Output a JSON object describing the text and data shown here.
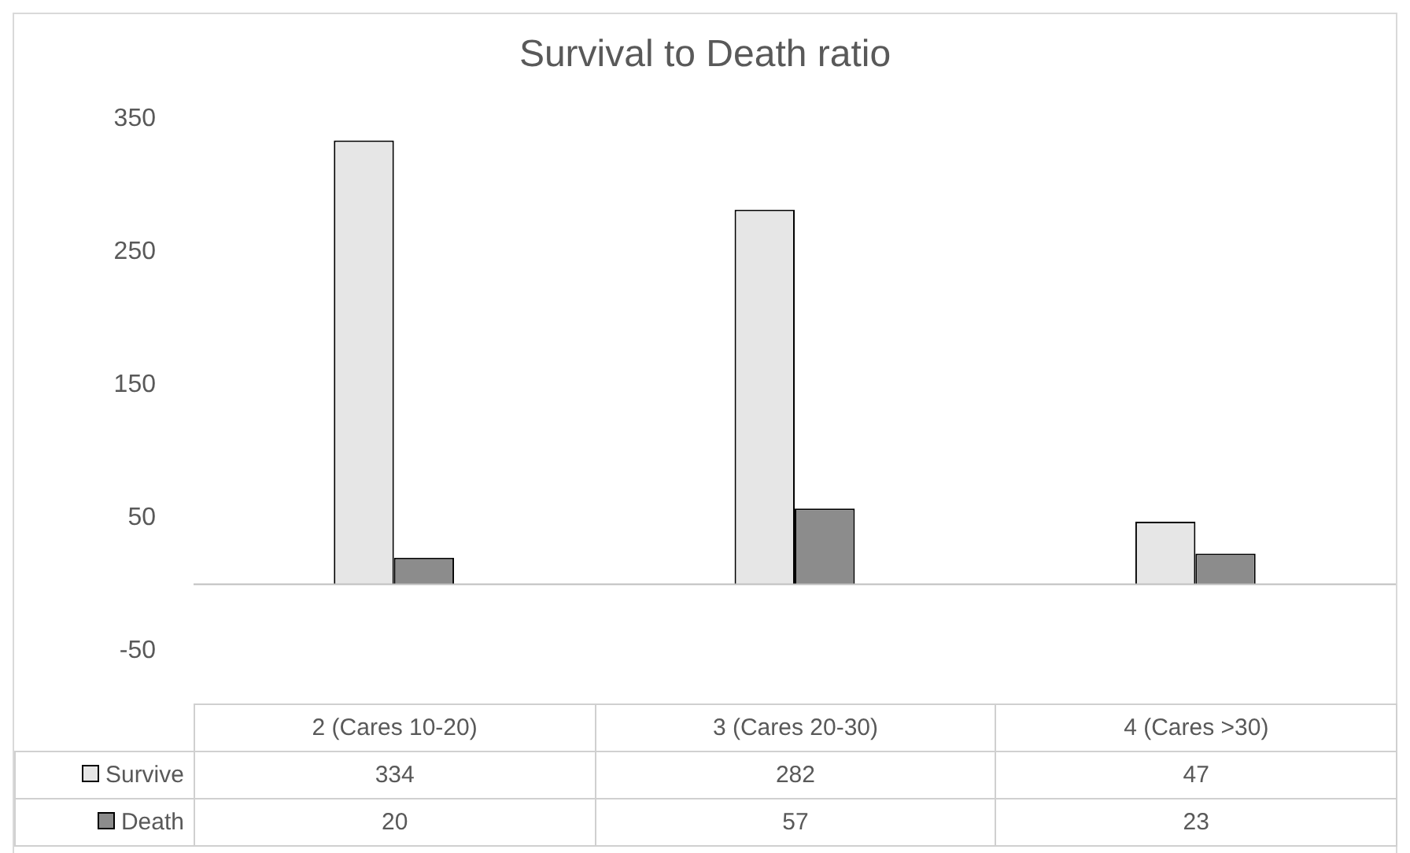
{
  "chart_data": {
    "type": "bar",
    "title": "Survival to Death ratio",
    "categories": [
      "2 (Cares  10-20)",
      "3 (Cares  20-30)",
      "4 (Cares  >30)"
    ],
    "series": [
      {
        "name": "Survive",
        "color": "#e6e6e6",
        "values": [
          334,
          282,
          47
        ]
      },
      {
        "name": "Death",
        "color": "#8c8c8c",
        "values": [
          20,
          57,
          23
        ]
      }
    ],
    "ylim": [
      -50,
      350
    ],
    "yticks": [
      -50,
      50,
      150,
      250,
      350
    ],
    "grid": false,
    "legend": "bottom",
    "data_labels": true
  }
}
